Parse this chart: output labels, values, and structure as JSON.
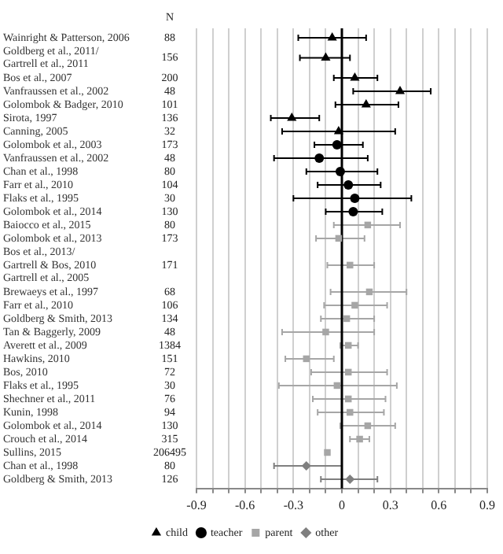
{
  "chart_data": {
    "type": "scatter",
    "orientation": "horizontal",
    "categories": [
      "Wainright & Patterson, 2006",
      "Goldberg et al., 2011/\nGartrell et al., 2011",
      "Bos et al., 2007",
      "Vanfraussen et al., 2002",
      "Golombok & Badger, 2010",
      "Sirota, 1997",
      "Canning, 2005",
      "Golombok et al., 2003",
      "Vanfraussen et al., 2002",
      "Chan et al., 1998",
      "Farr et al., 2010",
      "Flaks et al., 1995",
      "Golombok et al., 2014",
      "Baiocco et al., 2015",
      "Golombok et al., 2013",
      "Bos et al., 2013/\nGartrell & Bos, 2010\nGartrell et al., 2005",
      "Brewaeys et al., 1997",
      "Farr et al., 2010",
      "Goldberg & Smith, 2013",
      "Tan & Baggerly, 2009",
      "Averett et al., 2009",
      "Hawkins, 2010",
      "Bos, 2010",
      "Flaks et al., 1995",
      "Shechner et al., 2011",
      "Kunin, 1998",
      "Golombok et al., 2014",
      "Crouch et al., 2014",
      "Sullins, 2015",
      "Chan et al., 1998",
      "Goldberg & Smith, 2013"
    ],
    "y2label": "N",
    "y2_categories": [
      "88",
      "156",
      "200",
      "48",
      "101",
      "136",
      "32",
      "173",
      "48",
      "80",
      "104",
      "30",
      "130",
      "80",
      "173",
      "171",
      "68",
      "106",
      "134",
      "48",
      "1384",
      "151",
      "72",
      "30",
      "76",
      "94",
      "130",
      "315",
      "206495",
      "80",
      "126"
    ],
    "series": [
      {
        "name": "child",
        "color": "#000000",
        "marker": "triangle",
        "values": [
          -0.06,
          -0.1,
          0.08,
          0.36,
          0.15,
          -0.31,
          -0.02,
          null,
          null,
          null,
          null,
          null,
          null,
          null,
          null,
          null,
          null,
          null,
          null,
          null,
          null,
          null,
          null,
          null,
          null,
          null,
          null,
          null,
          null,
          null,
          null
        ],
        "errors": [
          [
            -0.27,
            0.15
          ],
          [
            -0.26,
            0.05
          ],
          [
            -0.05,
            0.22
          ],
          [
            0.07,
            0.55
          ],
          [
            -0.04,
            0.35
          ],
          [
            -0.44,
            -0.14
          ],
          [
            -0.37,
            0.33
          ],
          null,
          null,
          null,
          null,
          null,
          null,
          null,
          null,
          null,
          null,
          null,
          null,
          null,
          null,
          null,
          null,
          null,
          null,
          null,
          null,
          null,
          null,
          null,
          null
        ]
      },
      {
        "name": "teacher",
        "color": "#000000",
        "marker": "circle",
        "values": [
          null,
          null,
          null,
          null,
          null,
          null,
          null,
          -0.03,
          -0.14,
          -0.01,
          0.04,
          0.08,
          0.07,
          null,
          null,
          null,
          null,
          null,
          null,
          null,
          null,
          null,
          null,
          null,
          null,
          null,
          null,
          null,
          null,
          null,
          null
        ],
        "errors": [
          null,
          null,
          null,
          null,
          null,
          null,
          null,
          [
            -0.17,
            0.13
          ],
          [
            -0.42,
            0.16
          ],
          [
            -0.22,
            0.22
          ],
          [
            -0.15,
            0.24
          ],
          [
            -0.3,
            0.43
          ],
          [
            -0.1,
            0.25
          ],
          null,
          null,
          null,
          null,
          null,
          null,
          null,
          null,
          null,
          null,
          null,
          null,
          null,
          null,
          null,
          null,
          null,
          null
        ]
      },
      {
        "name": "parent",
        "color": "#a6a6a6",
        "marker": "square",
        "values": [
          null,
          null,
          null,
          null,
          null,
          null,
          null,
          null,
          null,
          null,
          null,
          null,
          null,
          0.16,
          -0.02,
          0.05,
          0.17,
          0.08,
          0.03,
          -0.1,
          0.04,
          -0.22,
          0.04,
          -0.03,
          0.04,
          0.05,
          0.16,
          0.11,
          -0.09,
          null,
          null
        ],
        "errors": [
          null,
          null,
          null,
          null,
          null,
          null,
          null,
          null,
          null,
          null,
          null,
          null,
          null,
          [
            -0.05,
            0.36
          ],
          [
            -0.16,
            0.14
          ],
          [
            -0.09,
            0.2
          ],
          [
            -0.07,
            0.4
          ],
          [
            -0.11,
            0.28
          ],
          [
            -0.13,
            0.2
          ],
          [
            -0.37,
            0.2
          ],
          [
            -0.01,
            0.1
          ],
          [
            -0.35,
            -0.05
          ],
          [
            -0.19,
            0.28
          ],
          [
            -0.39,
            0.34
          ],
          [
            -0.18,
            0.27
          ],
          [
            -0.15,
            0.26
          ],
          [
            -0.01,
            0.33
          ],
          [
            0.05,
            0.17
          ],
          null,
          null,
          null
        ]
      },
      {
        "name": "other",
        "color": "#7f7f7f",
        "marker": "diamond",
        "values": [
          null,
          null,
          null,
          null,
          null,
          null,
          null,
          null,
          null,
          null,
          null,
          null,
          null,
          null,
          null,
          null,
          null,
          null,
          null,
          null,
          null,
          null,
          null,
          null,
          null,
          null,
          null,
          null,
          null,
          -0.22,
          0.05
        ],
        "errors": [
          null,
          null,
          null,
          null,
          null,
          null,
          null,
          null,
          null,
          null,
          null,
          null,
          null,
          null,
          null,
          null,
          null,
          null,
          null,
          null,
          null,
          null,
          null,
          null,
          null,
          null,
          null,
          null,
          null,
          [
            -0.42,
            0.0
          ],
          [
            -0.13,
            0.22
          ]
        ]
      }
    ],
    "xlim": [
      -0.9,
      0.9
    ],
    "xticks": [
      -0.9,
      {
        "value": -0.8,
        "label": null
      },
      {
        "value": -0.7,
        "label": null
      },
      -0.6,
      {
        "value": -0.5,
        "label": null
      },
      {
        "value": -0.4,
        "label": null
      },
      -0.3,
      {
        "value": -0.2,
        "label": null
      },
      {
        "value": -0.1,
        "label": null
      },
      0,
      {
        "value": 0.1,
        "label": null
      },
      {
        "value": 0.2,
        "label": null
      },
      0.3,
      {
        "value": 0.4,
        "label": null
      },
      {
        "value": 0.5,
        "label": null
      },
      0.6,
      {
        "value": 0.7,
        "label": null
      },
      {
        "value": 0.8,
        "label": null
      },
      0.9
    ],
    "ref_lines": [
      {
        "axis": "x",
        "value": 0,
        "color": "#000000"
      }
    ],
    "grid": "x",
    "legend": "bottom"
  }
}
